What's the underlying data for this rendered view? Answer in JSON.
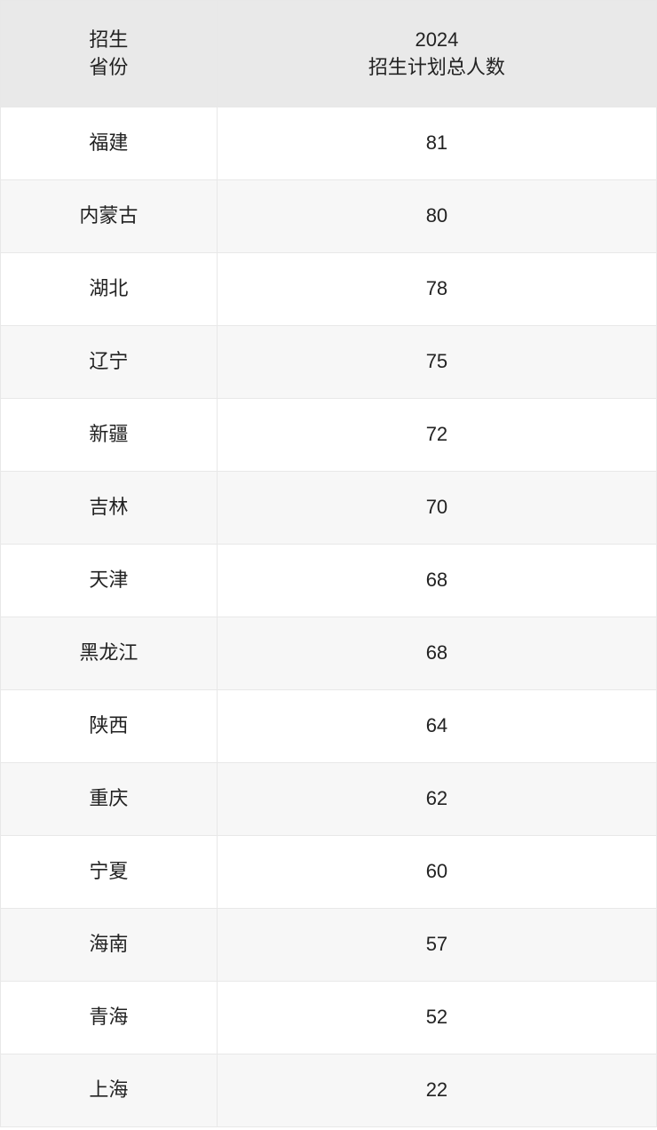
{
  "table": {
    "type": "table",
    "background_color": "#ffffff",
    "header_background_color": "#e9e9e9",
    "row_even_background_color": "#f7f7f7",
    "row_odd_background_color": "#ffffff",
    "border_color": "#e8e8e8",
    "text_color": "#222222",
    "font_size_pt": 16,
    "columns": [
      {
        "id": "province",
        "line1": "招生",
        "line2": "省份",
        "width_pct": 33,
        "align": "center"
      },
      {
        "id": "count",
        "line1": "2024",
        "line2": "招生计划总人数",
        "width_pct": 67,
        "align": "center"
      }
    ],
    "rows": [
      {
        "province": "福建",
        "count": "81"
      },
      {
        "province": "内蒙古",
        "count": "80"
      },
      {
        "province": "湖北",
        "count": "78"
      },
      {
        "province": "辽宁",
        "count": "75"
      },
      {
        "province": "新疆",
        "count": "72"
      },
      {
        "province": "吉林",
        "count": "70"
      },
      {
        "province": "天津",
        "count": "68"
      },
      {
        "province": "黑龙江",
        "count": "68"
      },
      {
        "province": "陕西",
        "count": "64"
      },
      {
        "province": "重庆",
        "count": "62"
      },
      {
        "province": "宁夏",
        "count": "60"
      },
      {
        "province": "海南",
        "count": "57"
      },
      {
        "province": "青海",
        "count": "52"
      },
      {
        "province": "上海",
        "count": "22"
      }
    ]
  }
}
